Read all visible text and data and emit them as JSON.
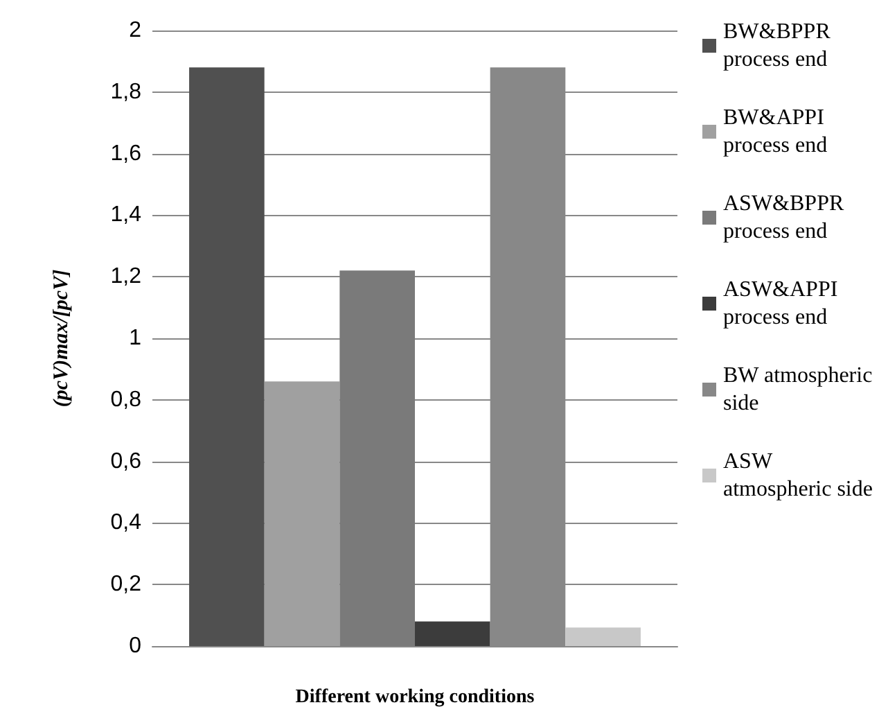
{
  "chart_data": {
    "type": "bar",
    "xlabel": "Different working conditions",
    "ylabel": "(pcV)max/[pcV]",
    "categories": [
      null
    ],
    "series": [
      {
        "name": "BW&BPPR process end",
        "color": "#505050",
        "values": [
          1.88
        ]
      },
      {
        "name": "BW&APPI process end",
        "color": "#a0a0a0",
        "values": [
          0.86
        ]
      },
      {
        "name": "ASW&BPPR process end",
        "color": "#7a7a7a",
        "values": [
          1.22
        ]
      },
      {
        "name": "ASW&APPI process end",
        "color": "#3c3c3c",
        "values": [
          0.08
        ]
      },
      {
        "name": "BW atmospheric side",
        "color": "#888888",
        "values": [
          1.88
        ]
      },
      {
        "name": "ASW atmospheric side",
        "color": "#c8c8c8",
        "values": [
          0.06
        ]
      }
    ],
    "ylim": [
      0,
      2
    ],
    "yticks": [
      0,
      {
        "value": 0.2,
        "label": "0,2"
      },
      {
        "value": 0.4,
        "label": "0,4"
      },
      {
        "value": 0.6,
        "label": "0,6"
      },
      {
        "value": 0.8,
        "label": "0,8"
      },
      1,
      {
        "value": 1.2,
        "label": "1,2"
      },
      {
        "value": 1.4,
        "label": "1,4"
      },
      {
        "value": 1.6,
        "label": "1,6"
      },
      {
        "value": 1.8,
        "label": "1,8"
      },
      2
    ],
    "grid": "y",
    "legend": "right"
  }
}
